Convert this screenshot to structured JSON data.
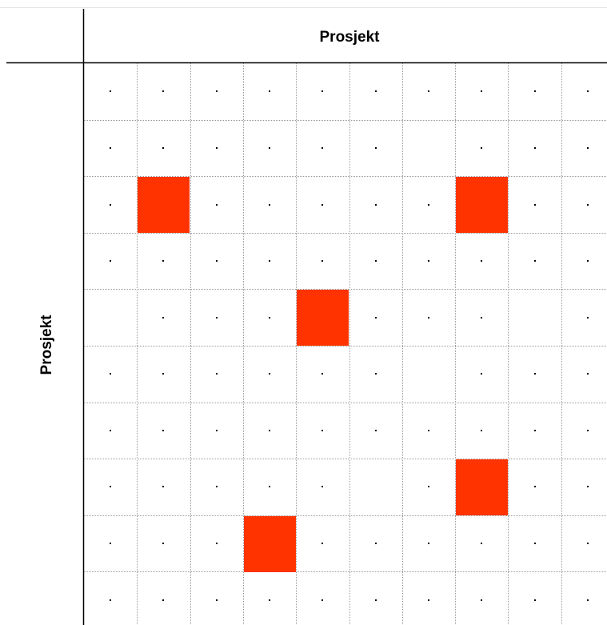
{
  "chart_data": {
    "type": "heatmap",
    "title": "",
    "xlabel": "Prosjekt",
    "ylabel": "Prosjekt",
    "rows": 10,
    "cols": 10,
    "grid": true,
    "highlight_color": "#ff3300",
    "empty_marker": "dot",
    "highlighted_cells": [
      {
        "row": 2,
        "col": 1
      },
      {
        "row": 2,
        "col": 7
      },
      {
        "row": 4,
        "col": 4
      },
      {
        "row": 7,
        "col": 7
      },
      {
        "row": 8,
        "col": 3
      }
    ],
    "blank_cells": [
      {
        "row": 1,
        "col": 6
      },
      {
        "row": 4,
        "col": 0
      },
      {
        "row": 4,
        "col": 8
      },
      {
        "row": 5,
        "col": 6
      },
      {
        "row": 7,
        "col": 5
      }
    ]
  },
  "colors": {
    "highlight": "#ff3300",
    "grid": "#9a9a9a",
    "axis": "#000000",
    "top_border": "#e6e6e6"
  }
}
